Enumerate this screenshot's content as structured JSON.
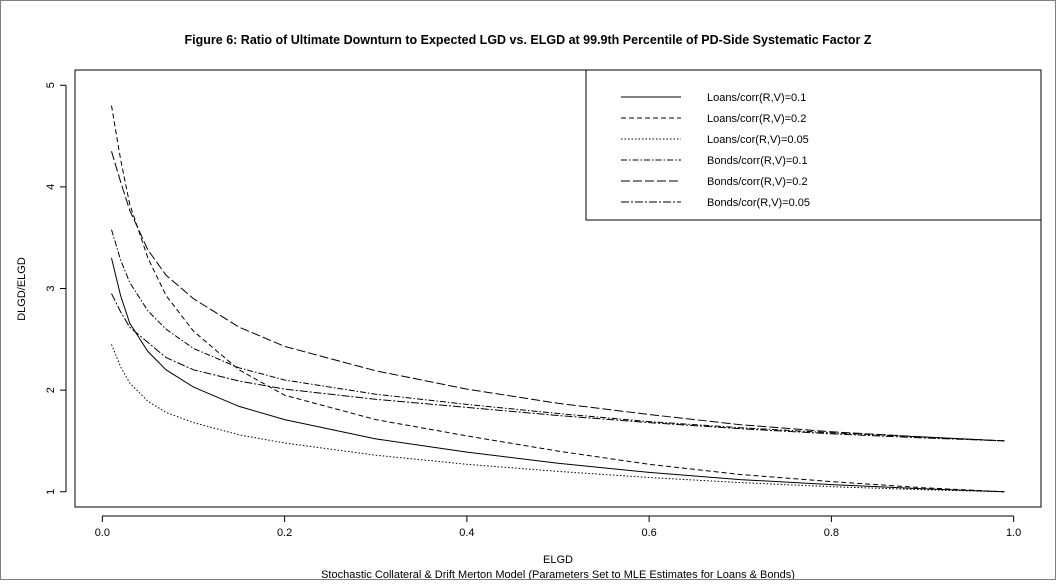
{
  "chart_data": {
    "type": "line",
    "title": "Figure 6: Ratio of Ultimate Downturn to Expected LGD vs. ELGD at 99.9th Percentile of PD-Side Systematic Factor Z",
    "xlabel": "ELGD",
    "subcaption": "Stochastic Collateral & Drift Merton Model (Parameters Set to MLE Estimates for Loans & Bonds)",
    "ylabel": "DLGD/ELGD",
    "xlim": [
      -0.03,
      1.03
    ],
    "ylim": [
      0.85,
      5.15
    ],
    "x_ticks": [
      0.0,
      0.2,
      0.4,
      0.6,
      0.8,
      1.0
    ],
    "x_tick_labels": [
      "0.0",
      "0.2",
      "0.4",
      "0.6",
      "0.8",
      "1.0"
    ],
    "y_ticks": [
      1,
      2,
      3,
      4,
      5
    ],
    "y_tick_labels": [
      "1",
      "2",
      "3",
      "4",
      "5"
    ],
    "grid": false,
    "legend_position": "top-right",
    "x": [
      0.01,
      0.02,
      0.03,
      0.05,
      0.07,
      0.1,
      0.15,
      0.2,
      0.3,
      0.4,
      0.5,
      0.6,
      0.7,
      0.8,
      0.9,
      0.99
    ],
    "series": [
      {
        "name": "Loans/corr(R,V)=0.1",
        "dash": "solid",
        "values": [
          3.3,
          2.93,
          2.66,
          2.38,
          2.2,
          2.03,
          1.84,
          1.71,
          1.52,
          1.39,
          1.28,
          1.19,
          1.12,
          1.07,
          1.03,
          1.0
        ]
      },
      {
        "name": "Loans/corr(R,V)=0.2",
        "dash": "dash",
        "values": [
          4.8,
          4.27,
          3.83,
          3.3,
          2.93,
          2.58,
          2.2,
          1.95,
          1.71,
          1.55,
          1.4,
          1.27,
          1.17,
          1.1,
          1.04,
          1.0
        ]
      },
      {
        "name": "Loans/cor(R,V)=0.05",
        "dash": "dot",
        "values": [
          2.45,
          2.23,
          2.07,
          1.89,
          1.78,
          1.68,
          1.56,
          1.48,
          1.36,
          1.27,
          1.2,
          1.14,
          1.09,
          1.05,
          1.02,
          1.0
        ]
      },
      {
        "name": "Bonds/corr(R,V)=0.1",
        "dash": "dashdot",
        "values": [
          3.58,
          3.28,
          3.06,
          2.78,
          2.6,
          2.41,
          2.22,
          2.1,
          1.96,
          1.86,
          1.77,
          1.69,
          1.63,
          1.58,
          1.54,
          1.5
        ]
      },
      {
        "name": "Bonds/corr(R,V)=0.2",
        "dash": "longdash",
        "values": [
          4.35,
          4.05,
          3.77,
          3.38,
          3.13,
          2.9,
          2.62,
          2.43,
          2.19,
          2.01,
          1.87,
          1.76,
          1.66,
          1.59,
          1.54,
          1.5
        ]
      },
      {
        "name": "Bonds/cor(R,V)=0.05",
        "dash": "twodash",
        "values": [
          2.95,
          2.77,
          2.62,
          2.47,
          2.32,
          2.2,
          2.09,
          2.01,
          1.91,
          1.83,
          1.75,
          1.68,
          1.62,
          1.57,
          1.53,
          1.5
        ]
      }
    ]
  }
}
